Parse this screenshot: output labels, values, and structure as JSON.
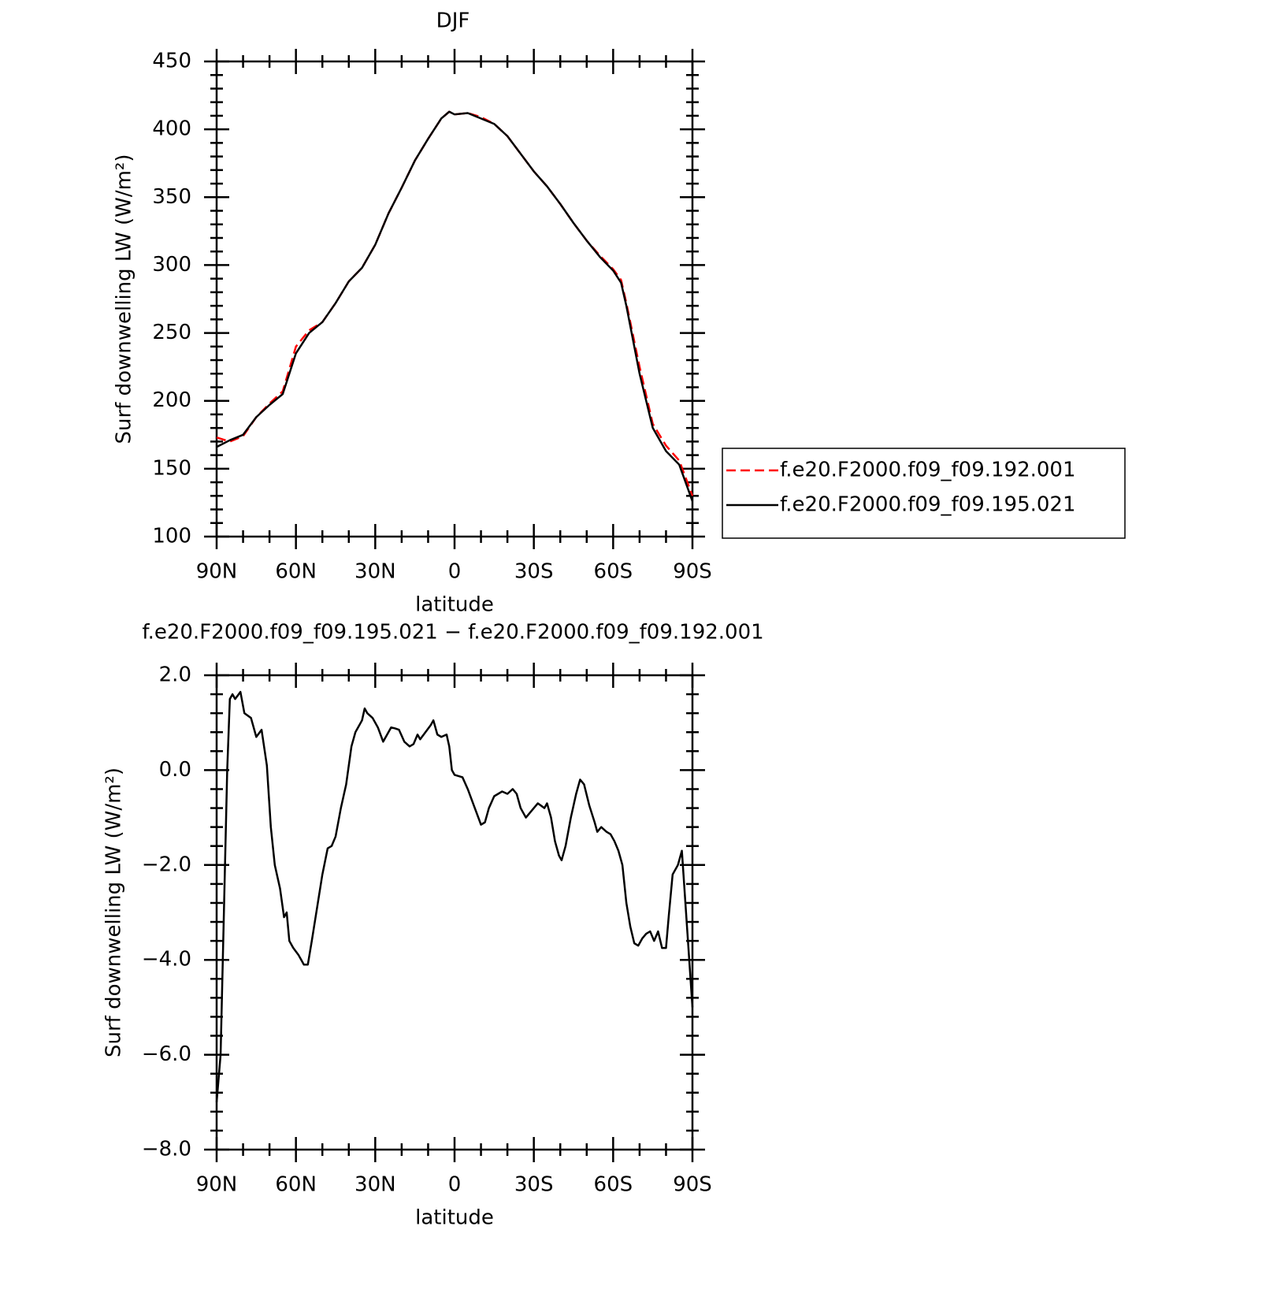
{
  "chart_data": [
    {
      "type": "line",
      "title": "DJF",
      "xlabel": "latitude",
      "ylabel": "Surf downwelling LW (W/m²)",
      "x": [
        90,
        85,
        80,
        75,
        70,
        65,
        60,
        55,
        50,
        45,
        40,
        35,
        30,
        25,
        20,
        15,
        10,
        5,
        2,
        0,
        -5,
        -10,
        -15,
        -20,
        -25,
        -30,
        -35,
        -40,
        -45,
        -50,
        -55,
        -60,
        -63,
        -65,
        -70,
        -75,
        -80,
        -85,
        -90
      ],
      "series": [
        {
          "name": "f.e20.F2000.f09_f09.192.001",
          "color": "#ff0000",
          "dash": true,
          "values": [
            173,
            170,
            174,
            188,
            198,
            207,
            240,
            252,
            258,
            272,
            288,
            298,
            315,
            338,
            357,
            377,
            393,
            408,
            413,
            411,
            412,
            409,
            404,
            395,
            382,
            369,
            358,
            345,
            331,
            318,
            307,
            297,
            289,
            272,
            225,
            183,
            167,
            156,
            130
          ]
        },
        {
          "name": "f.e20.F2000.f09_f09.195.021",
          "color": "#000000",
          "dash": false,
          "values": [
            166,
            171,
            175,
            188,
            197,
            205,
            235,
            250,
            258,
            272,
            288,
            298,
            315,
            338,
            357,
            377,
            393,
            408,
            413,
            411,
            412,
            408,
            404,
            395,
            382,
            369,
            358,
            345,
            331,
            318,
            306,
            296,
            287,
            270,
            220,
            180,
            163,
            153,
            126
          ]
        }
      ],
      "xlim": [
        90,
        -90
      ],
      "xticks": [
        {
          "value": 90,
          "label": "90N"
        },
        {
          "value": 60,
          "label": "60N"
        },
        {
          "value": 30,
          "label": "30N"
        },
        0,
        {
          "value": -30,
          "label": "30S"
        },
        {
          "value": -60,
          "label": "60S"
        },
        {
          "value": -90,
          "label": "90S"
        }
      ],
      "ylim": [
        100,
        450
      ],
      "yticks": [
        100,
        150,
        200,
        250,
        300,
        350,
        400,
        450
      ],
      "legend": "outside-right"
    },
    {
      "type": "line",
      "title": "f.e20.F2000.f09_f09.195.021 − f.e20.F2000.f09_f09.192.001",
      "xlabel": "latitude",
      "ylabel": "Surf downwelling LW (W/m²)",
      "x": [
        90,
        88.5,
        86,
        85,
        84,
        83,
        81,
        79.5,
        77,
        75,
        73,
        71,
        69.5,
        68,
        66,
        64.5,
        63.5,
        62.5,
        61,
        59,
        57,
        55.5,
        54,
        52,
        50,
        48,
        46.5,
        45,
        43,
        41,
        39,
        37.5,
        36,
        35,
        34,
        33,
        31,
        29,
        27,
        25.5,
        24,
        22.5,
        21,
        19,
        17,
        15.5,
        14,
        13,
        11,
        9,
        8,
        6.5,
        5,
        3,
        2,
        1,
        0,
        -3,
        -5,
        -7,
        -9,
        -10,
        -11.5,
        -13,
        -15,
        -16.5,
        -18,
        -20,
        -22,
        -23.5,
        -25,
        -27,
        -28.5,
        -30,
        -31.5,
        -34,
        -35,
        -36.5,
        -38,
        -39.5,
        -40.5,
        -42,
        -44,
        -46,
        -47.5,
        -49,
        -51,
        -53,
        -54,
        -55.5,
        -57.5,
        -59,
        -60.5,
        -62,
        -63.5,
        -65,
        -66.5,
        -68,
        -69.5,
        -71,
        -72.5,
        -74,
        -75.5,
        -77,
        -78.5,
        -80,
        -81,
        -82.5,
        -84.5,
        -86,
        -90
      ],
      "series": [
        {
          "name": "f.e20.F2000.f09_f09.195.021 − f.e20.F2000.f09_f09.192.001",
          "color": "#000000",
          "dash": false,
          "values": [
            -7.0,
            -6.0,
            0,
            1.5,
            1.6,
            1.5,
            1.65,
            1.2,
            1.1,
            0.7,
            0.85,
            0.1,
            -1.2,
            -2.0,
            -2.5,
            -3.1,
            -3.0,
            -3.6,
            -3.75,
            -3.9,
            -4.1,
            -4.1,
            -3.6,
            -2.9,
            -2.2,
            -1.65,
            -1.6,
            -1.4,
            -0.8,
            -0.3,
            0.5,
            0.8,
            0.95,
            1.05,
            1.3,
            1.2,
            1.1,
            0.9,
            0.6,
            0.75,
            0.9,
            0.88,
            0.85,
            0.6,
            0.5,
            0.55,
            0.75,
            0.65,
            0.8,
            0.95,
            1.05,
            0.75,
            0.7,
            0.75,
            0.5,
            0.0,
            -0.1,
            -0.15,
            -0.4,
            -0.7,
            -1.0,
            -1.15,
            -1.1,
            -0.8,
            -0.55,
            -0.5,
            -0.45,
            -0.5,
            -0.4,
            -0.5,
            -0.8,
            -1.0,
            -0.9,
            -0.8,
            -0.7,
            -0.8,
            -0.7,
            -1.0,
            -1.5,
            -1.8,
            -1.9,
            -1.6,
            -1.0,
            -0.5,
            -0.2,
            -0.3,
            -0.75,
            -1.1,
            -1.3,
            -1.2,
            -1.3,
            -1.35,
            -1.5,
            -1.7,
            -2.0,
            -2.8,
            -3.3,
            -3.65,
            -3.7,
            -3.55,
            -3.45,
            -3.4,
            -3.6,
            -3.4,
            -3.75,
            -3.75,
            -3.1,
            -2.2,
            -2.0,
            -1.7,
            -5.0
          ]
        }
      ],
      "xlim": [
        90,
        -90
      ],
      "xticks": [
        {
          "value": 90,
          "label": "90N"
        },
        {
          "value": 60,
          "label": "60N"
        },
        {
          "value": 30,
          "label": "30N"
        },
        0,
        {
          "value": -30,
          "label": "30S"
        },
        {
          "value": -60,
          "label": "60S"
        },
        {
          "value": -90,
          "label": "90S"
        }
      ],
      "ylim": [
        -8,
        2
      ],
      "yticks": [
        {
          "value": -8,
          "label": "−8.0"
        },
        {
          "value": -6,
          "label": "−6.0"
        },
        {
          "value": -4,
          "label": "−4.0"
        },
        {
          "value": -2,
          "label": "−2.0"
        },
        {
          "value": 0,
          "label": "0.0"
        },
        {
          "value": 2,
          "label": "2.0"
        }
      ]
    }
  ]
}
